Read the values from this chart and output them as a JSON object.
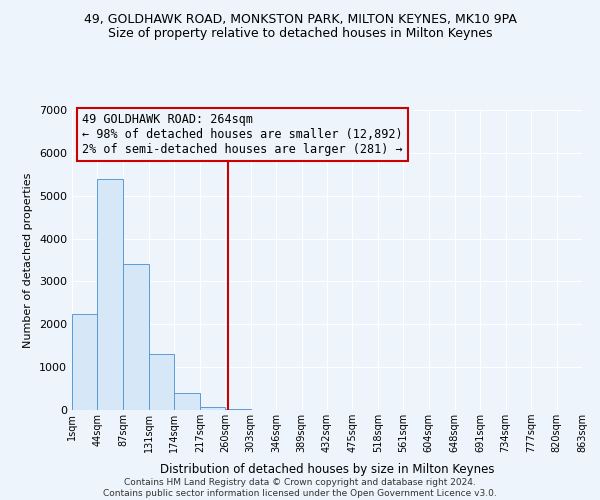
{
  "title": "49, GOLDHAWK ROAD, MONKSTON PARK, MILTON KEYNES, MK10 9PA",
  "subtitle": "Size of property relative to detached houses in Milton Keynes",
  "xlabel": "Distribution of detached houses by size in Milton Keynes",
  "ylabel": "Number of detached properties",
  "bin_edges": [
    1,
    44,
    87,
    131,
    174,
    217,
    260,
    303,
    346,
    389,
    432,
    475,
    518,
    561,
    604,
    648,
    691,
    734,
    777,
    820,
    863
  ],
  "bar_heights": [
    2250,
    5400,
    3400,
    1300,
    400,
    60,
    25,
    10,
    5,
    3,
    2,
    2,
    1,
    1,
    1,
    0,
    0,
    0,
    0,
    0
  ],
  "bar_color": "#d6e8f7",
  "bar_edge_color": "#5b9bd5",
  "property_line_x": 264,
  "property_line_color": "#cc0000",
  "annotation_line1": "49 GOLDHAWK ROAD: 264sqm",
  "annotation_line2": "← 98% of detached houses are smaller (12,892)",
  "annotation_line3": "2% of semi-detached houses are larger (281) →",
  "annotation_box_color": "#cc0000",
  "ylim": [
    0,
    7000
  ],
  "yticks": [
    0,
    1000,
    2000,
    3000,
    4000,
    5000,
    6000,
    7000
  ],
  "tick_labels": [
    "1sqm",
    "44sqm",
    "87sqm",
    "131sqm",
    "174sqm",
    "217sqm",
    "260sqm",
    "303sqm",
    "346sqm",
    "389sqm",
    "432sqm",
    "475sqm",
    "518sqm",
    "561sqm",
    "604sqm",
    "648sqm",
    "691sqm",
    "734sqm",
    "777sqm",
    "820sqm",
    "863sqm"
  ],
  "footer_text": "Contains HM Land Registry data © Crown copyright and database right 2024.\nContains public sector information licensed under the Open Government Licence v3.0.",
  "background_color": "#eef4fb",
  "grid_color": "#ffffff",
  "title_fontsize": 9,
  "subtitle_fontsize": 9,
  "annotation_fontsize": 8.5
}
